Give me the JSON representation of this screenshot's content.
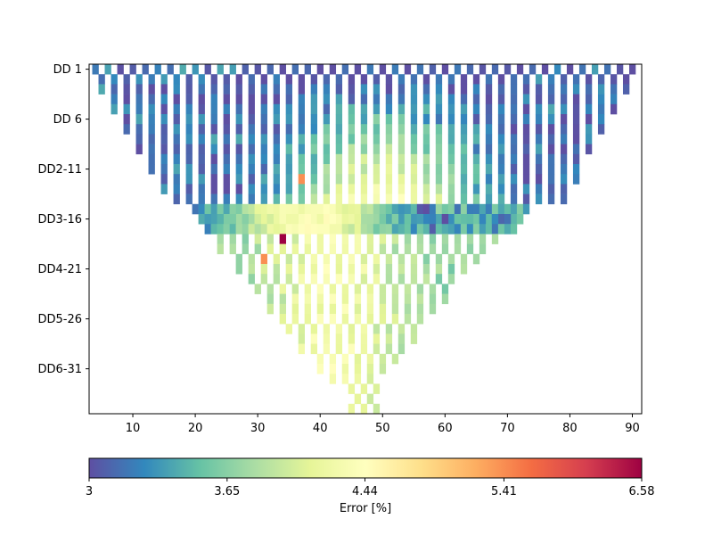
{
  "chart_data": {
    "type": "heatmap",
    "title": "",
    "xlabel": "",
    "ylabel": "",
    "xlim": [
      3,
      91.5
    ],
    "x_ticks": [
      10,
      20,
      30,
      40,
      50,
      60,
      70,
      80,
      90
    ],
    "y_tick_labels": [
      "DD 1",
      "DD 6",
      "DD2-11",
      "DD3-16",
      "DD4-21",
      "DD5-26",
      "DD6-31"
    ],
    "y_tick_rows": [
      1,
      6,
      11,
      16,
      21,
      26,
      31
    ],
    "rows": 35,
    "cell_width": 1,
    "grid": false,
    "colormap": "Spectral_r",
    "colorbar": {
      "label": "Error [%]",
      "scale": "log",
      "min": 3,
      "max": 6.58,
      "ticks": [
        3,
        3.65,
        4.44,
        5.41,
        6.58
      ],
      "tick_labels": [
        "3",
        "3.65",
        "4.44",
        "5.41",
        "6.58"
      ],
      "orientation": "horizontal",
      "placement": "bottom"
    },
    "series": [
      {
        "row_from": 1,
        "row_to": 9,
        "x_start": 3.5,
        "x_end": 91.5,
        "indent_per_row": 1,
        "pattern": "alternate",
        "values": "mostly 3.0–3.4 (dark blue) near edges; 3.6–4.3 in the centre (x≈37–62) for rows 4–9"
      },
      {
        "row_from": 10,
        "row_to": 14,
        "x_start": 12,
        "x_end": 83,
        "indent_per_row": 1,
        "pattern": "alternate",
        "values": "3.0–3.3 at edges; 3.8–4.6 around x≈35–60; peaks 5.3–5.5 at x≈37–40 in row 12"
      },
      {
        "row_from": 15,
        "row_to": 17,
        "x_start": 20,
        "x_end": 73,
        "pattern": "dense",
        "values": "3.0–3.4 at left and right; 4.0–4.6 around x≈30–45"
      },
      {
        "row_from": 18,
        "row_to": 35,
        "x_start": 23,
        "x_end": 68,
        "indent_per_row": 1.2,
        "pattern": "alternate",
        "values": "3.5–4.4 general; peaks 6.58 at x≈34 and 5.4 at x≈31 in row 18; 5.4 at x≈31 in row 20"
      }
    ]
  }
}
